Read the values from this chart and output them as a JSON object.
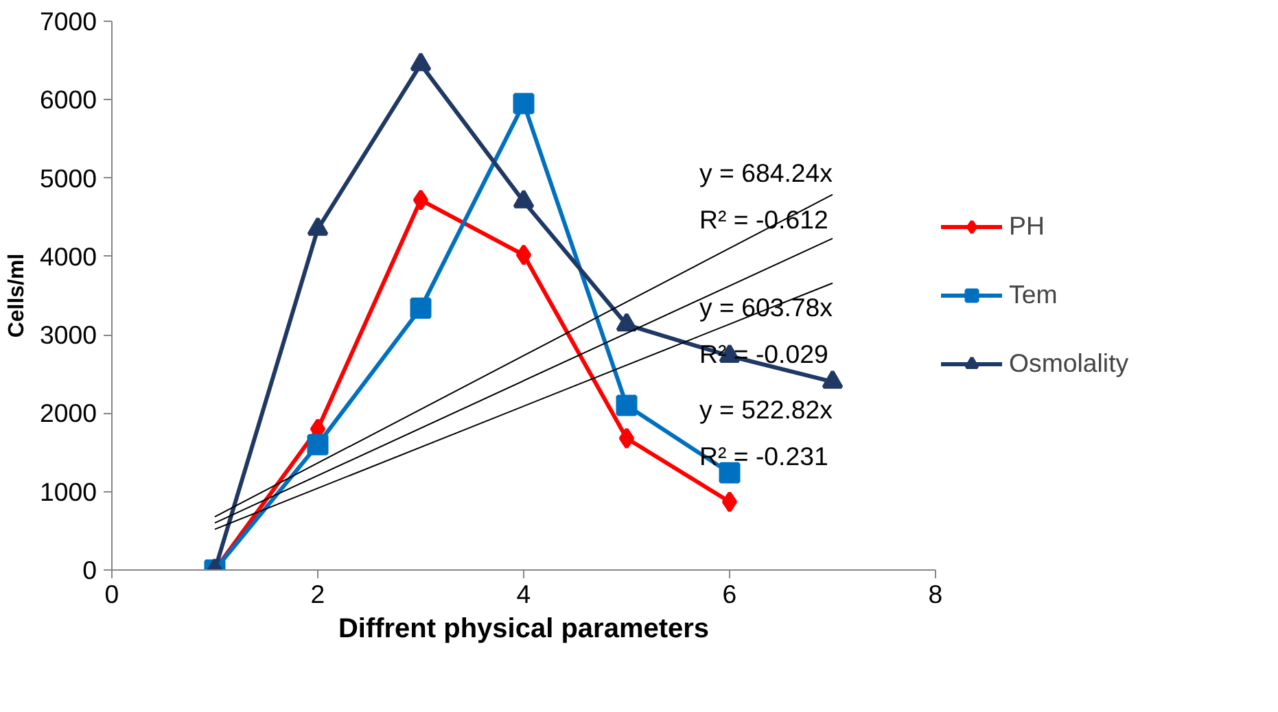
{
  "chart_data": {
    "type": "line",
    "xlabel": "Diffrent physical parameters",
    "ylabel": "Cells/ml",
    "xlim": [
      0,
      8
    ],
    "xticks": [
      0,
      2,
      4,
      6,
      8
    ],
    "ylim": [
      0,
      7000
    ],
    "yticks": [
      0,
      1000,
      2000,
      3000,
      4000,
      5000,
      6000,
      7000
    ],
    "grid": false,
    "legend": "right",
    "series": [
      {
        "name": "PH",
        "color": "#ff0000",
        "marker": "diamond",
        "x": [
          1,
          2,
          3,
          4,
          5,
          6
        ],
        "values": [
          0,
          1800,
          4720,
          4020,
          1680,
          870
        ]
      },
      {
        "name": "Tem",
        "color": "#0070c0",
        "marker": "square",
        "x": [
          1,
          2,
          3,
          4,
          5,
          6
        ],
        "values": [
          0,
          1600,
          3340,
          5950,
          2100,
          1240
        ]
      },
      {
        "name": "Osmolality",
        "color": "#1f3864",
        "marker": "triangle",
        "x": [
          1,
          2,
          3,
          4,
          5,
          6,
          7
        ],
        "values": [
          0,
          4350,
          6450,
          4700,
          3130,
          2730,
          2400
        ]
      },
      {
        "color": "#000000",
        "marker": "none",
        "x": [
          1,
          7
        ],
        "values": [
          680,
          4790
        ]
      },
      {
        "color": "#000000",
        "marker": "none",
        "x": [
          1,
          7
        ],
        "values": [
          600,
          4230
        ]
      },
      {
        "color": "#000000",
        "marker": "none",
        "x": [
          1,
          7
        ],
        "values": [
          520,
          3660
        ]
      }
    ],
    "annotations": [
      "y = 684.24x",
      "R² = -0.612",
      "y = 603.78x",
      "R² = -0.029",
      "y = 522.82x",
      "R² = -0.231"
    ]
  }
}
